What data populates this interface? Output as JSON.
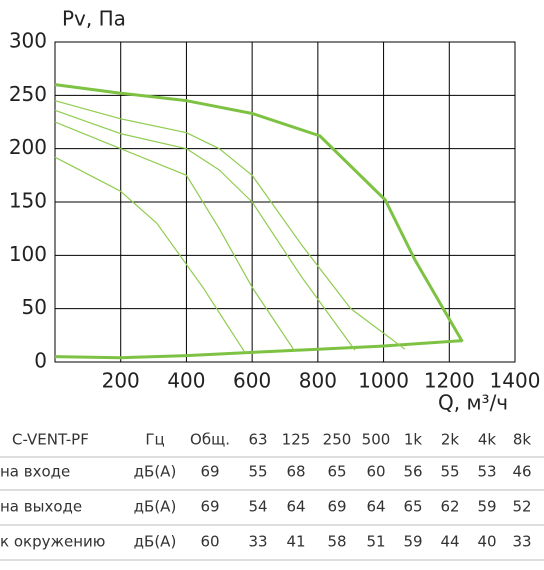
{
  "chart_data": {
    "type": "line",
    "y_label": "Pv, Па",
    "x_label": "Q, м³/ч",
    "xlim": [
      0,
      1400
    ],
    "ylim": [
      0,
      300
    ],
    "xticks": [
      200,
      400,
      600,
      800,
      1000,
      1200,
      1400
    ],
    "yticks": [
      0,
      50,
      100,
      150,
      200,
      250,
      300
    ],
    "grid": true,
    "series": [
      {
        "color": "#7dc243",
        "width": 3,
        "x": [
          0,
          200,
          400,
          600,
          806,
          1005,
          1095,
          1240
        ],
        "values": [
          260,
          252,
          245,
          233,
          212,
          152,
          96,
          19
        ]
      },
      {
        "color": "#7dc243",
        "width": 3,
        "x": [
          0,
          200,
          400,
          600,
          800,
          1000,
          1240
        ],
        "values": [
          5,
          4,
          6,
          9,
          12,
          15,
          20
        ]
      },
      {
        "color": "#8fcc4e",
        "width": 1.2,
        "x": [
          0,
          200,
          400,
          500,
          600,
          750,
          900,
          1065
        ],
        "values": [
          245,
          228,
          215,
          200,
          175,
          110,
          50,
          12
        ]
      },
      {
        "color": "#8fcc4e",
        "width": 1.2,
        "x": [
          0,
          200,
          400,
          500,
          600,
          750,
          913
        ],
        "values": [
          236,
          214,
          200,
          180,
          150,
          80,
          11
        ]
      },
      {
        "color": "#8fcc4e",
        "width": 1.2,
        "x": [
          0,
          200,
          400,
          500,
          600,
          730
        ],
        "values": [
          225,
          200,
          175,
          125,
          70,
          10
        ]
      },
      {
        "color": "#8fcc4e",
        "width": 1.2,
        "x": [
          0,
          200,
          310,
          450,
          578
        ],
        "values": [
          192,
          160,
          130,
          70,
          9
        ]
      }
    ]
  },
  "table": {
    "header": [
      "C-VENT-PF",
      "Гц",
      "Общ.",
      "63",
      "125",
      "250",
      "500",
      "1k",
      "2k",
      "4k",
      "8k"
    ],
    "rows": [
      [
        "на входе",
        "дБ(А)",
        69,
        55,
        68,
        65,
        60,
        56,
        55,
        53,
        46
      ],
      [
        "на выходе",
        "дБ(А)",
        69,
        54,
        64,
        69,
        64,
        65,
        62,
        59,
        52
      ],
      [
        "к окружению",
        "дБ(А)",
        60,
        33,
        41,
        58,
        51,
        59,
        44,
        40,
        33
      ]
    ]
  }
}
